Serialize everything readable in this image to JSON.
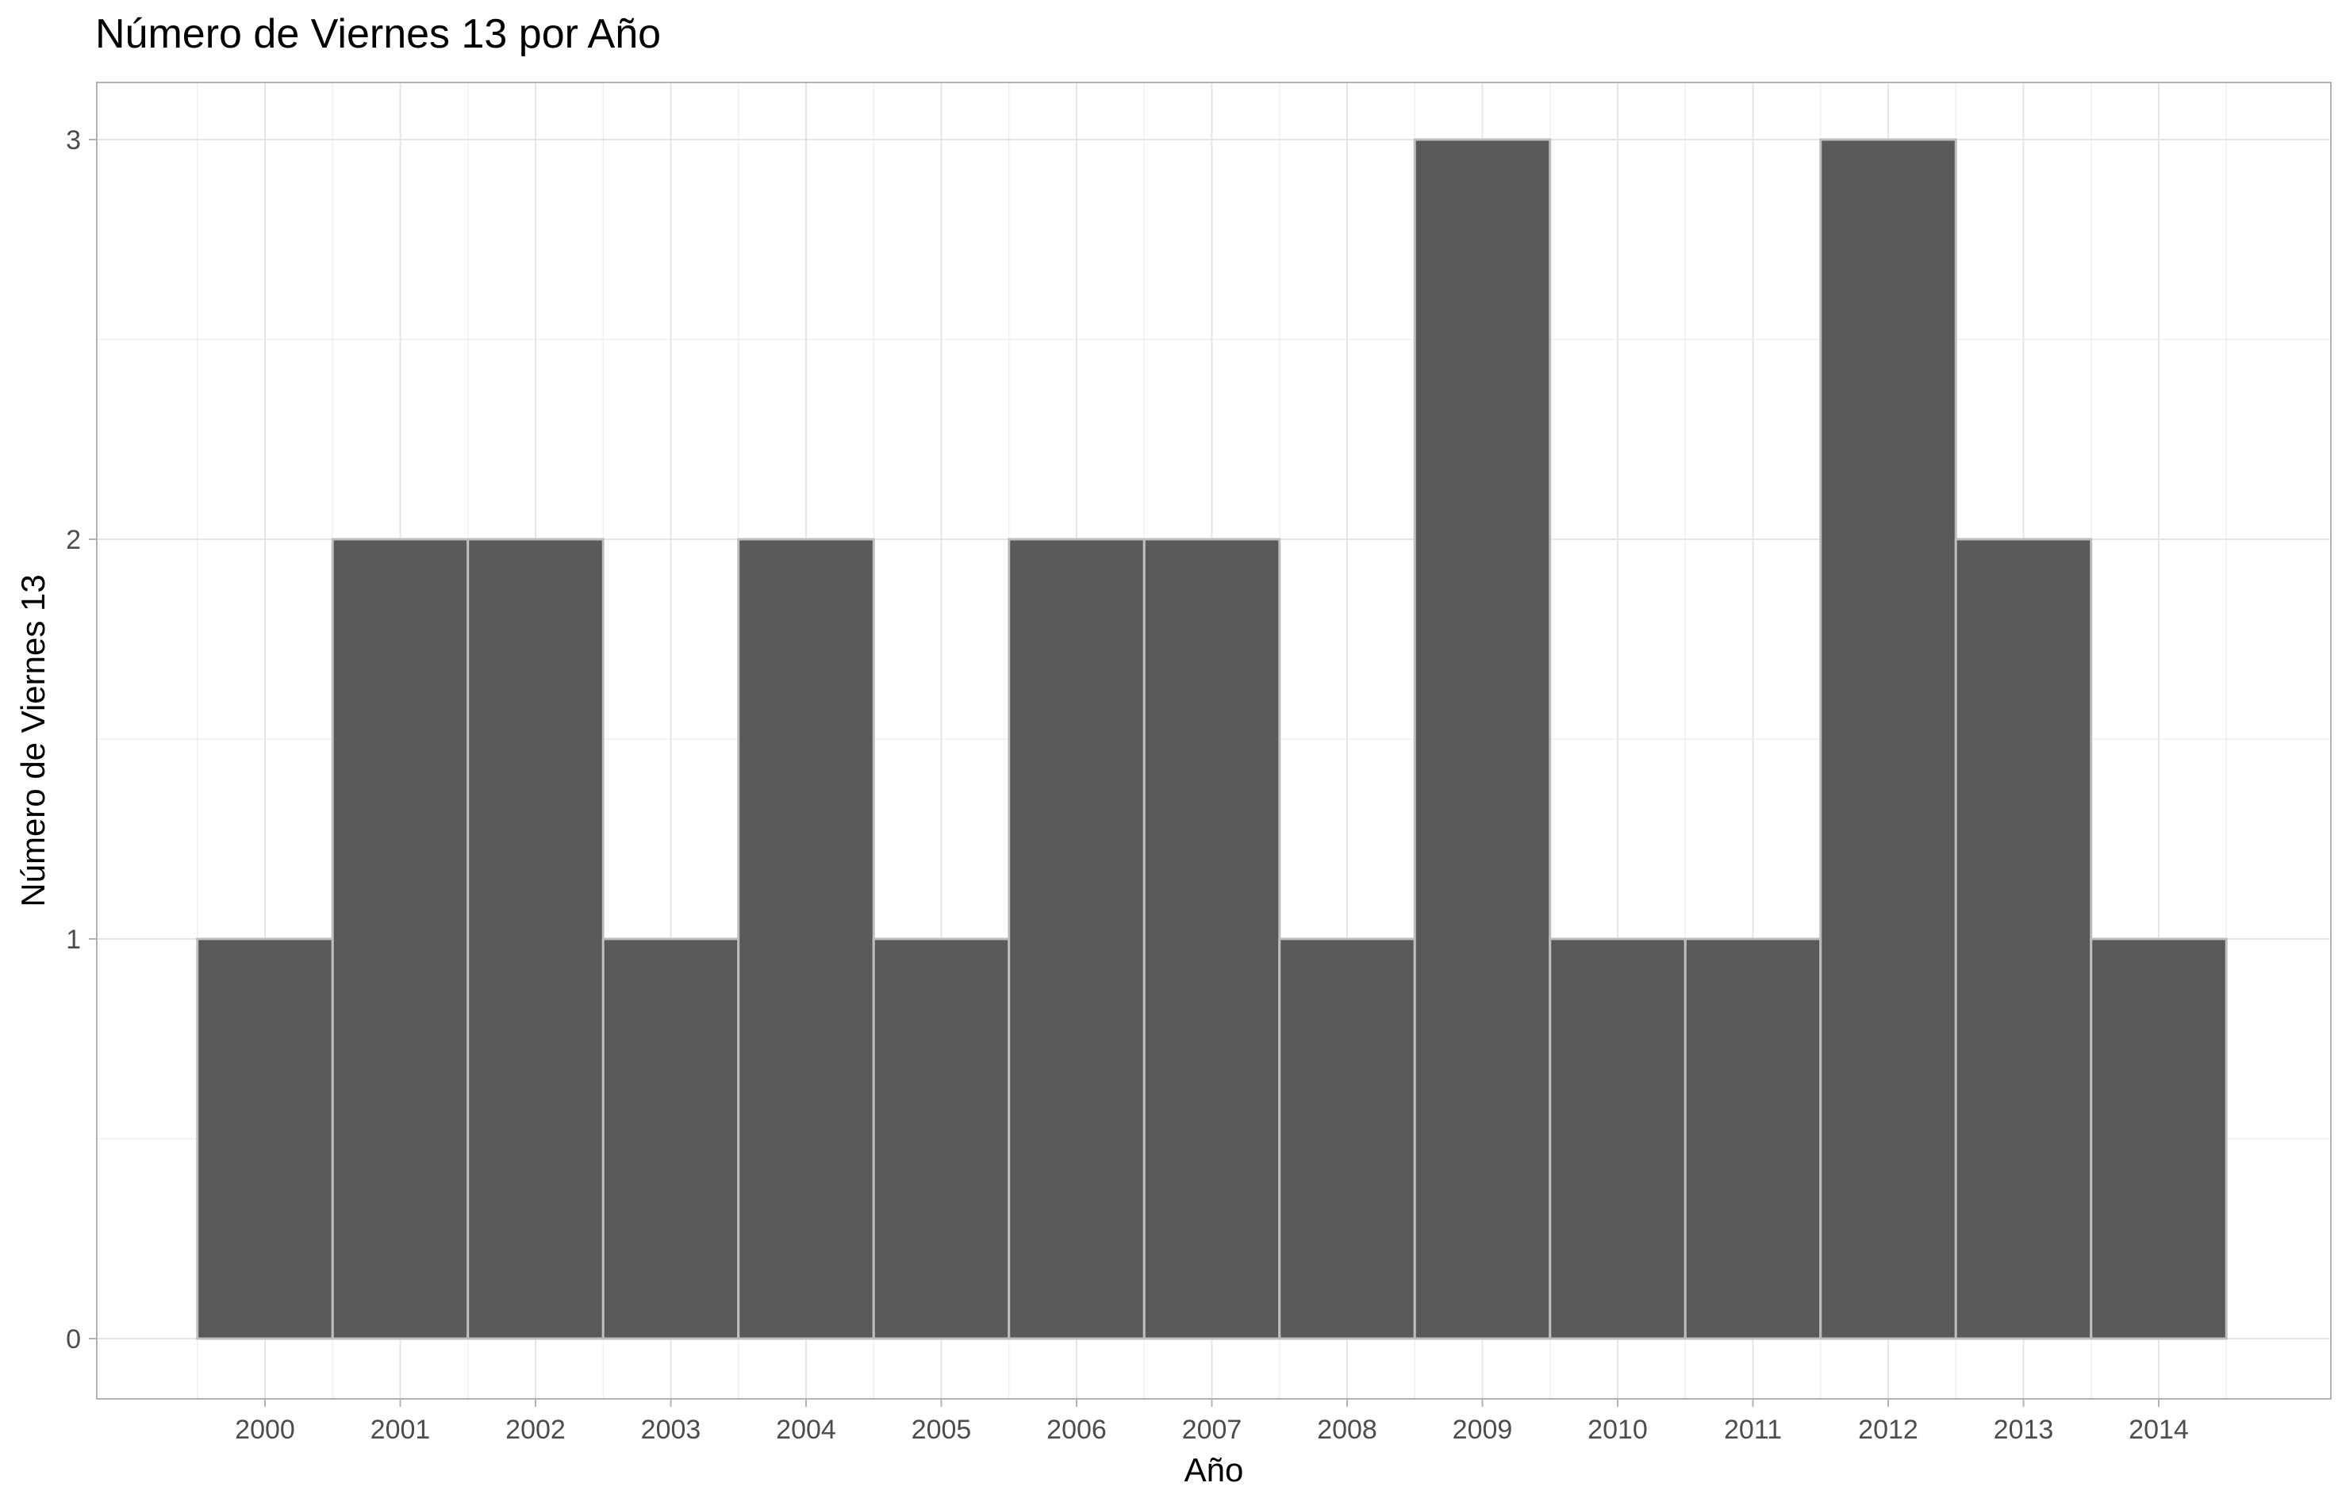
{
  "chart_data": {
    "type": "bar",
    "title": "Número de Viernes 13 por Año",
    "xlabel": "Año",
    "ylabel": "Número de Viernes 13",
    "categories": [
      "2000",
      "2001",
      "2002",
      "2003",
      "2004",
      "2005",
      "2006",
      "2007",
      "2008",
      "2009",
      "2010",
      "2011",
      "2012",
      "2013",
      "2014"
    ],
    "values": [
      1,
      2,
      2,
      1,
      2,
      1,
      2,
      2,
      1,
      3,
      1,
      1,
      3,
      2,
      1
    ],
    "ylim": [
      0,
      3
    ],
    "yticks": [
      "0",
      "1",
      "2",
      "3"
    ],
    "grid": true,
    "legend": "none",
    "colors": {
      "bar_fill": "#595959",
      "bar_stroke": "#bebebe",
      "grid": "#e5e5e5",
      "panel_border": "#b3b3b3",
      "tick_text": "#4d4d4d"
    }
  }
}
